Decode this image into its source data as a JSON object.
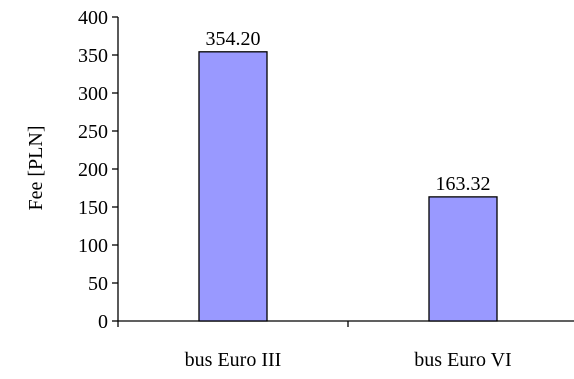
{
  "chart_data": {
    "type": "bar",
    "categories": [
      "bus Euro III",
      "bus Euro VI"
    ],
    "values": [
      354.2,
      163.32
    ],
    "data_labels": [
      "354.20",
      "163.32"
    ],
    "title": "",
    "xlabel": "",
    "ylabel": "Fee [PLN]",
    "ylim": [
      0,
      400
    ],
    "yticks": [
      0,
      50,
      100,
      150,
      200,
      250,
      300,
      350,
      400
    ],
    "grid": false,
    "legend": "none",
    "bar_color": "#9999ff",
    "bar_edge_color": "#000000"
  }
}
